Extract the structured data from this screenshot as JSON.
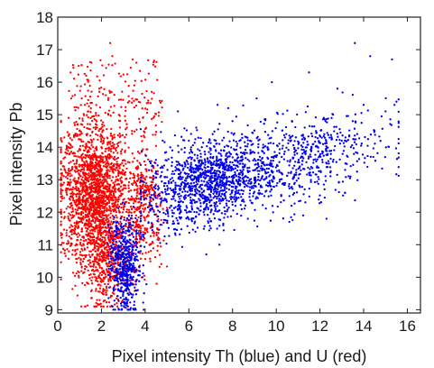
{
  "chart_data": {
    "type": "scatter",
    "title": "",
    "xlabel": "Pixel intensity Th (blue) and U (red)",
    "ylabel": "Pixel intensity Pb",
    "xlim": [
      0,
      16.6
    ],
    "ylim": [
      8.9,
      18
    ],
    "xticks": [
      0,
      2,
      4,
      6,
      8,
      10,
      12,
      14,
      16
    ],
    "yticks": [
      9,
      10,
      11,
      12,
      13,
      14,
      15,
      16,
      17,
      18
    ],
    "grid": false,
    "legend": "none",
    "series": [
      {
        "color": "#ff0000",
        "description_points": [
          [
            2.4,
            17.2
          ],
          [
            2.5,
            16.8
          ],
          [
            3.6,
            16.6
          ],
          [
            1.3,
            16.2
          ],
          [
            1.9,
            15.8
          ],
          [
            3.5,
            15.9
          ],
          [
            4.3,
            15.7
          ],
          [
            1.1,
            15.5
          ],
          [
            2.2,
            15.6
          ],
          [
            0.5,
            14.9
          ],
          [
            1.4,
            15.1
          ],
          [
            2.8,
            15.0
          ],
          [
            3.9,
            14.9
          ],
          [
            0.3,
            14.3
          ],
          [
            1.0,
            14.5
          ],
          [
            1.8,
            14.6
          ],
          [
            2.6,
            14.3
          ],
          [
            3.4,
            14.5
          ],
          [
            0.4,
            13.8
          ],
          [
            1.2,
            13.9
          ],
          [
            2.0,
            14.0
          ],
          [
            2.9,
            13.8
          ],
          [
            0.2,
            13.2
          ],
          [
            0.8,
            13.4
          ],
          [
            1.6,
            13.5
          ],
          [
            2.3,
            13.3
          ],
          [
            1.1,
            13.0
          ],
          [
            0.4,
            12.6
          ],
          [
            1.5,
            12.7
          ],
          [
            2.2,
            12.8
          ],
          [
            1.0,
            12.3
          ],
          [
            0.3,
            12.0
          ],
          [
            1.7,
            12.1
          ],
          [
            2.6,
            12.2
          ],
          [
            0.9,
            11.7
          ],
          [
            1.9,
            11.6
          ],
          [
            0.6,
            11.2
          ],
          [
            1.4,
            11.3
          ],
          [
            2.4,
            11.1
          ],
          [
            0.8,
            10.8
          ],
          [
            1.8,
            10.7
          ],
          [
            2.9,
            10.9
          ],
          [
            1.1,
            10.3
          ],
          [
            2.1,
            10.2
          ],
          [
            3.1,
            10.4
          ],
          [
            1.4,
            9.8
          ],
          [
            2.4,
            9.7
          ],
          [
            3.3,
            9.9
          ],
          [
            1.8,
            9.3
          ],
          [
            2.7,
            9.2
          ],
          [
            3.5,
            12.0
          ],
          [
            4.0,
            13.0
          ],
          [
            4.6,
            12.5
          ],
          [
            3.8,
            11.5
          ],
          [
            4.2,
            11.0
          ]
        ]
      },
      {
        "color": "#0000ee",
        "description_points": [
          [
            2.5,
            9.1
          ],
          [
            2.8,
            9.6
          ],
          [
            3.2,
            9.5
          ],
          [
            3.0,
            10.2
          ],
          [
            2.7,
            10.6
          ],
          [
            3.4,
            10.8
          ],
          [
            3.3,
            11.3
          ],
          [
            3.8,
            11.8
          ],
          [
            4.3,
            12.2
          ],
          [
            4.8,
            12.6
          ],
          [
            5.2,
            12.9
          ],
          [
            5.5,
            13.3
          ],
          [
            5.8,
            12.4
          ],
          [
            6.2,
            13.0
          ],
          [
            6.5,
            13.6
          ],
          [
            6.9,
            12.7
          ],
          [
            7.2,
            13.2
          ],
          [
            7.6,
            13.9
          ],
          [
            8.0,
            13.1
          ],
          [
            8.4,
            13.6
          ],
          [
            8.8,
            14.2
          ],
          [
            9.2,
            13.4
          ],
          [
            9.6,
            14.0
          ],
          [
            10.0,
            13.7
          ],
          [
            10.4,
            14.3
          ],
          [
            10.9,
            13.9
          ],
          [
            11.3,
            14.6
          ],
          [
            11.7,
            14.1
          ],
          [
            12.2,
            14.4
          ],
          [
            12.6,
            15.0
          ],
          [
            13.0,
            14.2
          ],
          [
            13.5,
            14.8
          ],
          [
            14.0,
            15.3
          ],
          [
            14.5,
            14.5
          ],
          [
            15.0,
            15.1
          ],
          [
            15.5,
            15.4
          ],
          [
            6.3,
            11.4
          ],
          [
            6.8,
            10.7
          ],
          [
            7.4,
            11.0
          ],
          [
            8.7,
            11.8
          ],
          [
            10.7,
            12.2
          ],
          [
            12.3,
            11.8
          ],
          [
            5.5,
            15.1
          ],
          [
            7.8,
            15.2
          ],
          [
            9.8,
            16.0
          ],
          [
            11.5,
            16.3
          ],
          [
            13.6,
            17.2
          ],
          [
            14.3,
            16.8
          ],
          [
            15.3,
            16.7
          ],
          [
            8.0,
            14.8
          ],
          [
            9.1,
            15.5
          ],
          [
            12.8,
            15.8
          ],
          [
            7.0,
            12.0
          ],
          [
            6.0,
            14.2
          ]
        ]
      }
    ]
  }
}
